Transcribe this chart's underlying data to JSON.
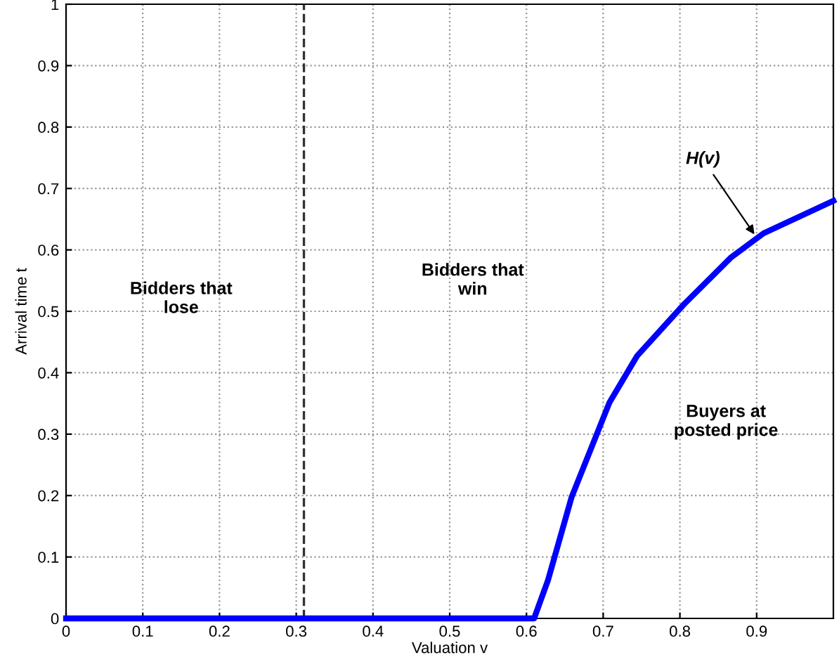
{
  "chart_data": {
    "type": "line",
    "xlabel": "Valuation v",
    "ylabel": "Arrival time t",
    "series": [
      {
        "color": "#0000ff",
        "x": [
          0,
          0.61,
          0.628,
          0.659,
          0.708,
          0.744,
          0.805,
          0.866,
          0.909,
          1.0
        ],
        "values": [
          0,
          0,
          0.062,
          0.198,
          0.351,
          0.427,
          0.511,
          0.587,
          0.627,
          0.68
        ]
      }
    ],
    "xlim": [
      0,
      1
    ],
    "xticks": [
      0,
      0.1,
      0.2,
      0.3,
      0.4,
      0.5,
      0.6,
      0.7,
      0.8,
      0.9
    ],
    "ylim": [
      0,
      1
    ],
    "yticks": [
      0,
      0.1,
      0.2,
      0.3,
      0.4,
      0.5,
      0.6,
      0.7,
      0.8,
      0.9,
      1
    ],
    "ref_lines": [
      {
        "axis": "x",
        "value": 0.31,
        "color": "#333333",
        "line_style": "dashed"
      }
    ],
    "annotations": [
      {
        "text": "H(v)",
        "x": 0.9,
        "y": 0.62
      },
      "Bidders that\nlose",
      "Bidders that\nwin",
      "Buyers at\nposted price"
    ],
    "grid": true,
    "line_style": "solid",
    "marker": "none"
  }
}
